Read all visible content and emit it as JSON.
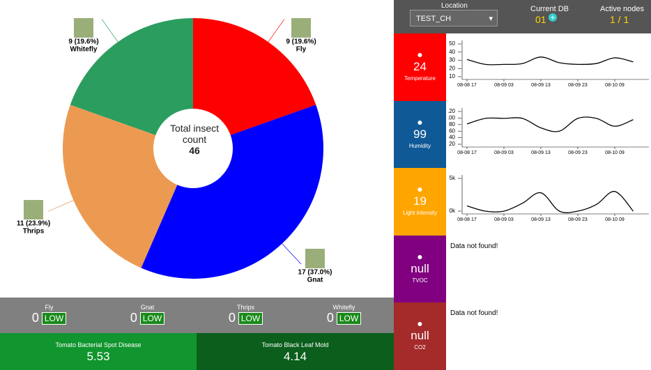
{
  "header": {
    "location_label": "Location",
    "location": "TEST_CH",
    "db_label": "Current DB",
    "db": "01",
    "nodes_label": "Active nodes",
    "nodes": "1 / 1"
  },
  "pie": {
    "type": "pie",
    "center_text": "Total insect count",
    "total": 46,
    "categories": [
      "Fly",
      "Gnat",
      "Thrips",
      "Whitefly"
    ],
    "values": [
      9,
      17,
      11,
      9
    ],
    "value_labels": [
      "9 (19.6%)",
      "17 (37.0%)",
      "11 (23.9%)",
      "9 (19.6%)"
    ],
    "colors": [
      "#ff0000",
      "#0000ff",
      "#ec9a52",
      "#2a9d5f"
    ]
  },
  "risks": [
    {
      "name": "Fly",
      "value": 0,
      "level": "LOW"
    },
    {
      "name": "Gnat",
      "value": 0,
      "level": "LOW"
    },
    {
      "name": "Thrips",
      "value": 0,
      "level": "LOW"
    },
    {
      "name": "Whitefly",
      "value": 0,
      "level": "LOW"
    }
  ],
  "diseases": [
    {
      "name": "Tomato Bacterial Spot Disease",
      "value": 5.53
    },
    {
      "name": "Tomato Black Leaf Mold",
      "value": 4.14
    }
  ],
  "sensors": [
    {
      "name": "Temperature",
      "value": 24,
      "color": "#ff0000",
      "chart": {
        "type": "line",
        "categories": [
          "08-08 17",
          null,
          "08-09 03",
          null,
          "08-09 13",
          null,
          "08-09 23",
          null,
          "08-10 09",
          null
        ],
        "values": [
          31,
          25,
          25,
          26,
          34,
          27,
          25,
          26,
          33,
          28
        ],
        "ylim": [
          10,
          50
        ],
        "yticks": [
          10,
          20,
          30,
          40,
          50
        ]
      }
    },
    {
      "name": "Humidity",
      "value": 99,
      "color": "#0f5a96",
      "chart": {
        "type": "line",
        "categories": [
          "08-08 17",
          null,
          "08-09 03",
          null,
          "08-09 13",
          null,
          "08-09 23",
          null,
          "08-10 09",
          null
        ],
        "values": [
          82,
          99,
          99,
          99,
          70,
          60,
          99,
          99,
          75,
          95
        ],
        "ylim": [
          20,
          120
        ],
        "yticks": [
          20,
          40,
          60,
          80,
          100,
          120
        ]
      }
    },
    {
      "name": "Light intensity",
      "value": 19,
      "color": "#ffa500",
      "chart": {
        "type": "line",
        "categories": [
          "08-08 17",
          null,
          "08-09 03",
          null,
          "08-09 13",
          null,
          "08-09 23",
          null,
          "08-10 09",
          null
        ],
        "values": [
          800,
          0,
          0,
          1200,
          2800,
          0,
          0,
          1000,
          3000,
          0
        ],
        "ylim": [
          0,
          5000
        ],
        "yticks": [
          {
            "value": 0,
            "label": "0k"
          },
          {
            "value": 5000,
            "label": "5k"
          }
        ]
      }
    },
    {
      "name": "TVOC",
      "value": "null",
      "color": "#800080",
      "message": "Data not found!"
    },
    {
      "name": "CO2",
      "value": "null",
      "color": "#a52a2a",
      "message": "Data not found!"
    }
  ]
}
